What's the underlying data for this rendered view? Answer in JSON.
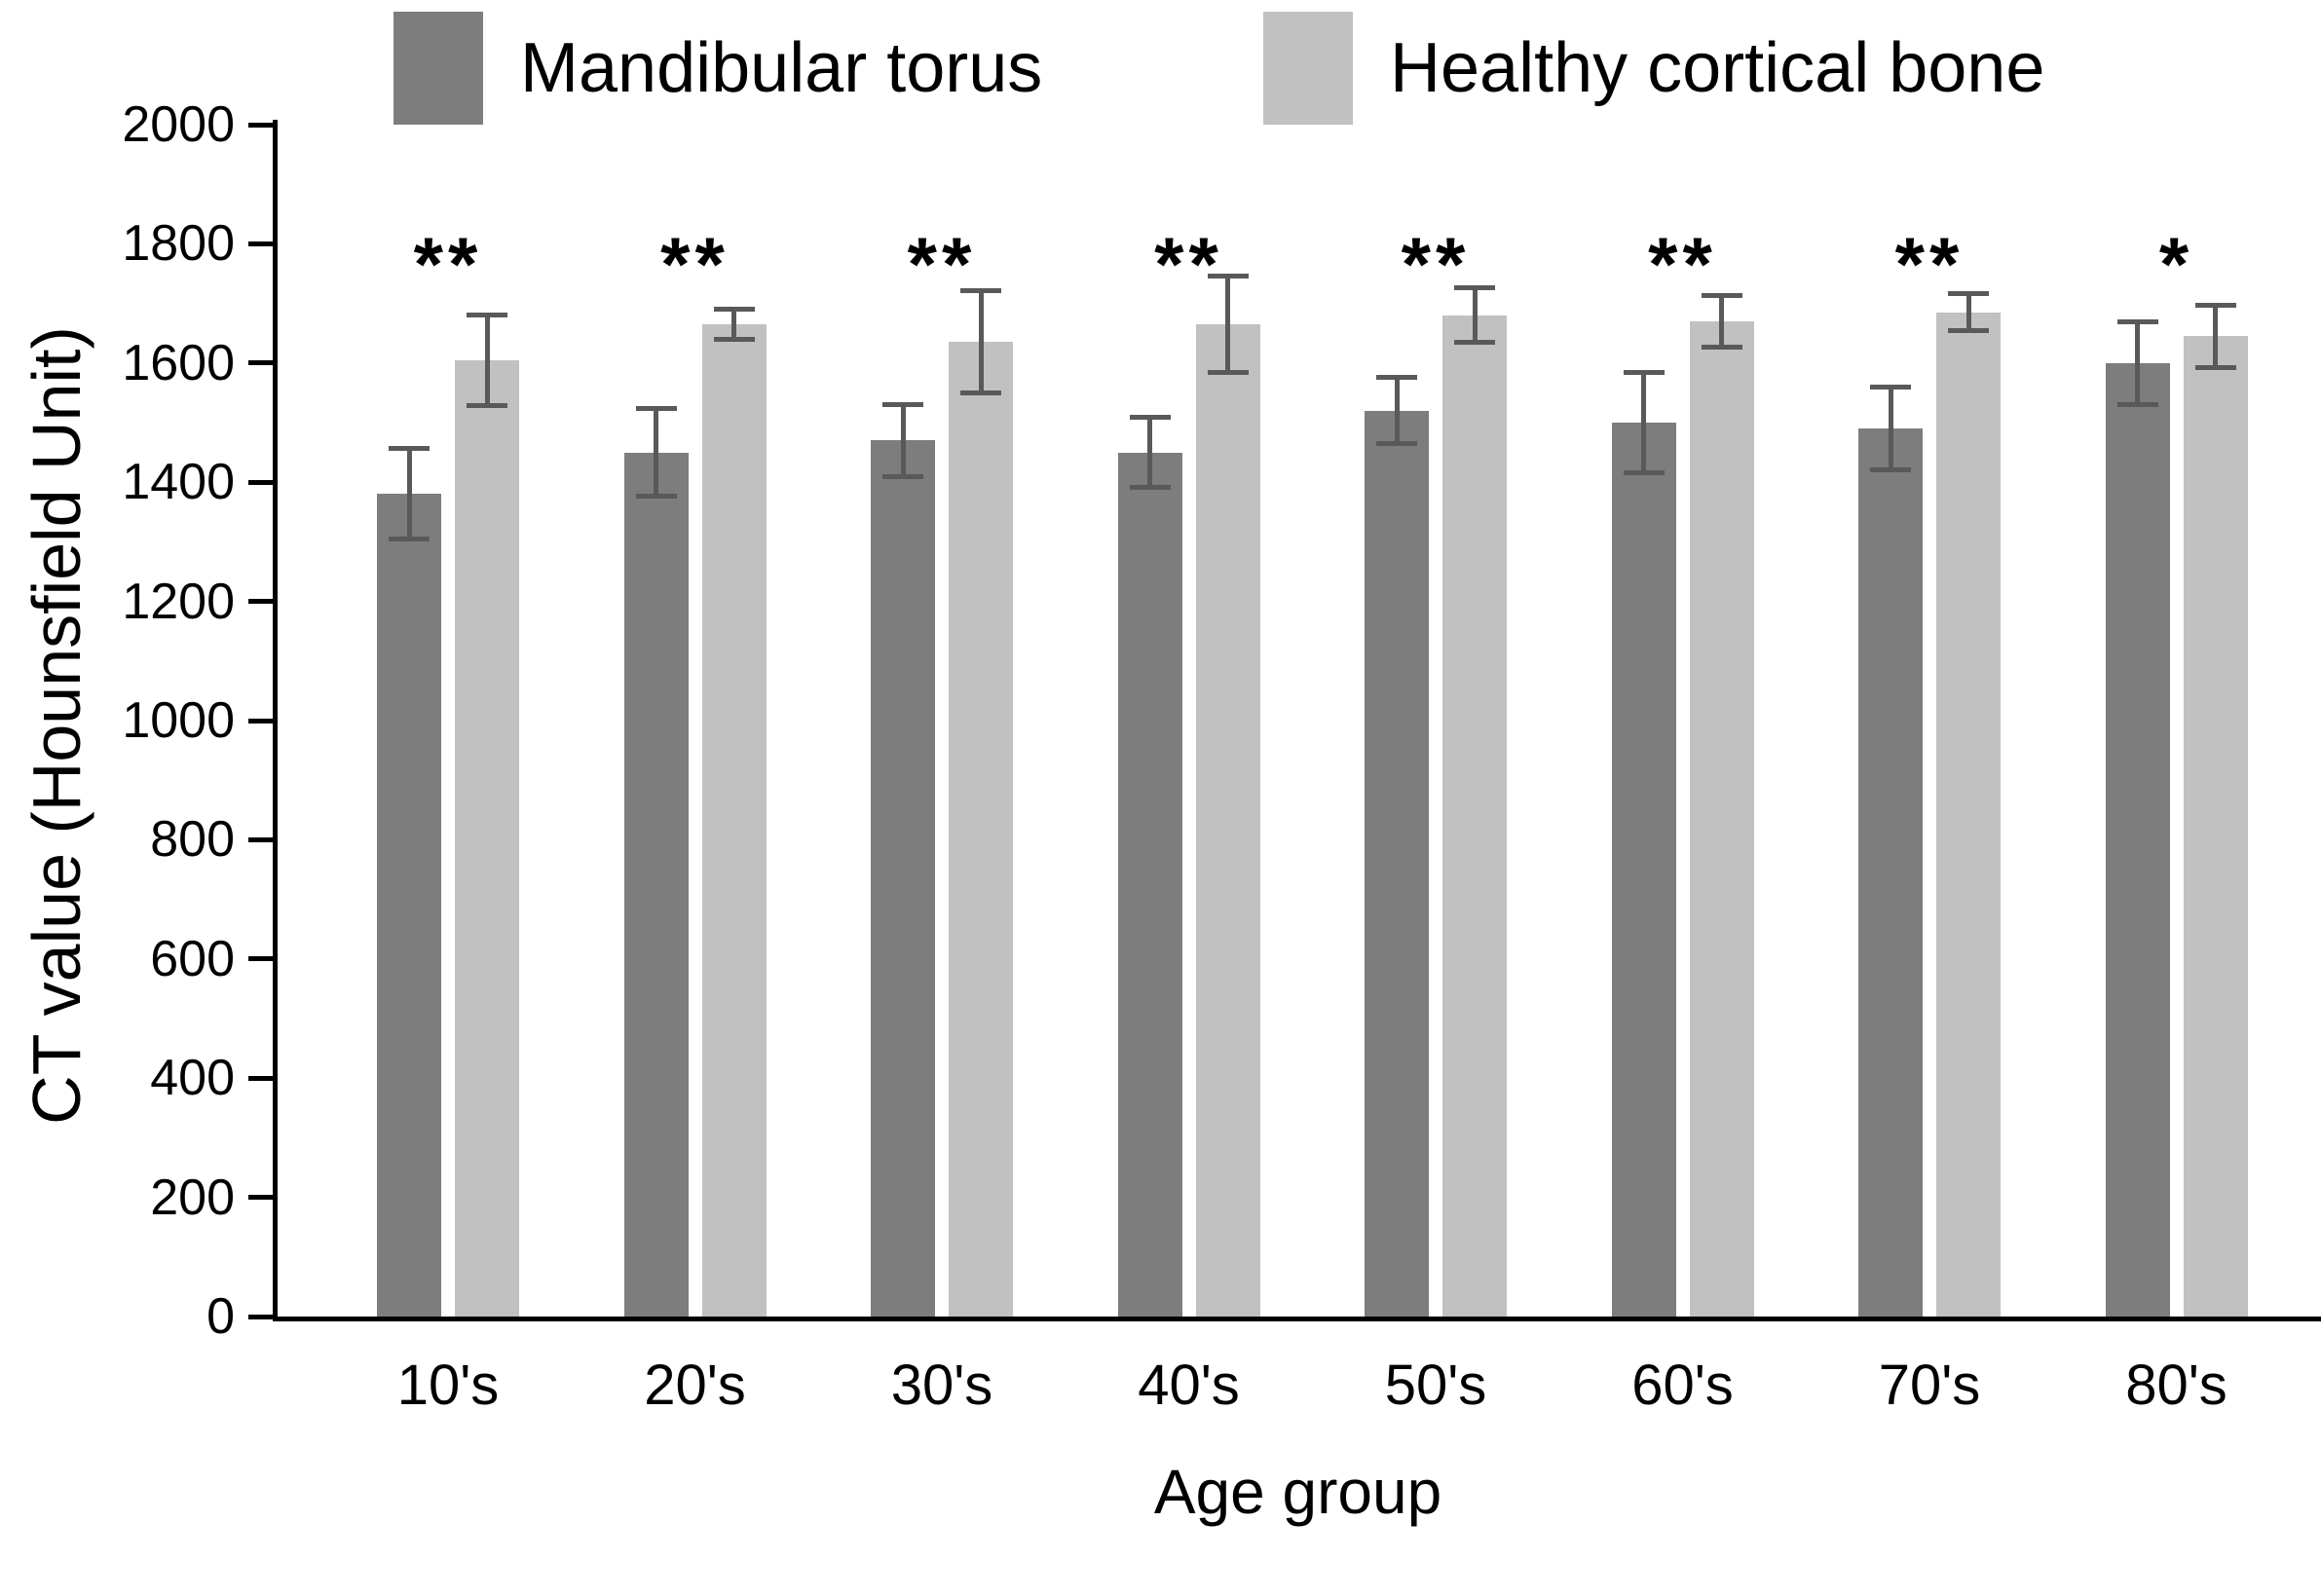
{
  "figure": {
    "background": "#ffffff",
    "text_color": "#000000",
    "axis_color": "#000000"
  },
  "chart_data": {
    "type": "bar",
    "title": "",
    "xlabel": "Age group",
    "ylabel": "CT value (Hounsfield Unit)",
    "ylim": [
      0,
      2000
    ],
    "ytick_step": 200,
    "grid": false,
    "legend_position": "top",
    "error_bar_color": "#595959",
    "categories": [
      "10's",
      "20's",
      "30's",
      "40's",
      "50's",
      "60's",
      "70's",
      "80's"
    ],
    "series": [
      {
        "name": "Mandibular torus",
        "color": "#7d7d7d",
        "values": [
          1380,
          1450,
          1470,
          1450,
          1520,
          1500,
          1490,
          1600
        ],
        "errors": [
          80,
          78,
          64,
          63,
          60,
          88,
          74,
          74
        ]
      },
      {
        "name": "Healthy cortical bone",
        "color": "#c1c1c1",
        "values": [
          1605,
          1665,
          1635,
          1665,
          1680,
          1670,
          1685,
          1645
        ],
        "errors": [
          80,
          30,
          90,
          85,
          50,
          47,
          35,
          56
        ]
      }
    ],
    "significance": [
      "**",
      "**",
      "**",
      "**",
      "**",
      "**",
      "**",
      "*"
    ]
  }
}
